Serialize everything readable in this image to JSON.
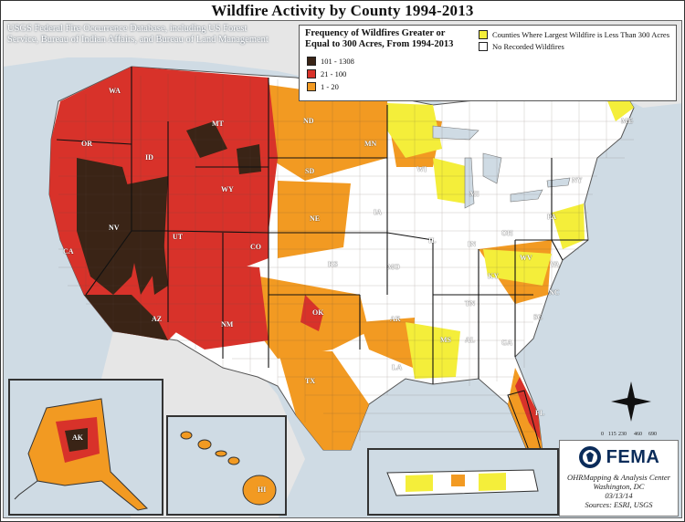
{
  "title": "Wildfire Activity by County 1994-2013",
  "source_note": "USGS Federal Fire Occurrence Database, including US Forest Service, Bureau of Indian Affairs, and Bureau of Land Management",
  "legend": {
    "title": "Frequency of Wildfires Greater or Equal to 300 Acres, From 1994-2013",
    "classes": [
      {
        "label": "101 - 1308",
        "color": "#3a2416"
      },
      {
        "label": "21 - 100",
        "color": "#d8322a"
      },
      {
        "label": "1 - 20",
        "color": "#f29a22"
      },
      {
        "label": "Counties Where Largest Wildfire is Less Than 300 Acres",
        "color": "#f4ee3a"
      },
      {
        "label": "No Recorded Wildfires",
        "color": "#ffffff"
      }
    ]
  },
  "state_labels": [
    "WA",
    "OR",
    "CA",
    "ID",
    "NV",
    "UT",
    "AZ",
    "MT",
    "WY",
    "CO",
    "NM",
    "ND",
    "SD",
    "NE",
    "KS",
    "OK",
    "TX",
    "MN",
    "IA",
    "MO",
    "AR",
    "LA",
    "WI",
    "IL",
    "MI",
    "IN",
    "OH",
    "KY",
    "TN",
    "MS",
    "AL",
    "GA",
    "FL",
    "SC",
    "NC",
    "VA",
    "WV",
    "PA",
    "NY",
    "ME",
    "AK",
    "HI"
  ],
  "scale": {
    "ticks": [
      "0",
      "115",
      "230",
      "",
      "460",
      "",
      "690"
    ],
    "unit": "miles"
  },
  "credits": {
    "agency": "FEMA",
    "lines": [
      "OHRMapping & Analysis Center",
      "Washington, DC",
      "03/13/14",
      "Sources: ESRI, USGS"
    ]
  },
  "colors": {
    "water": "#cfdbe4",
    "no_data_land": "#ffffff"
  }
}
